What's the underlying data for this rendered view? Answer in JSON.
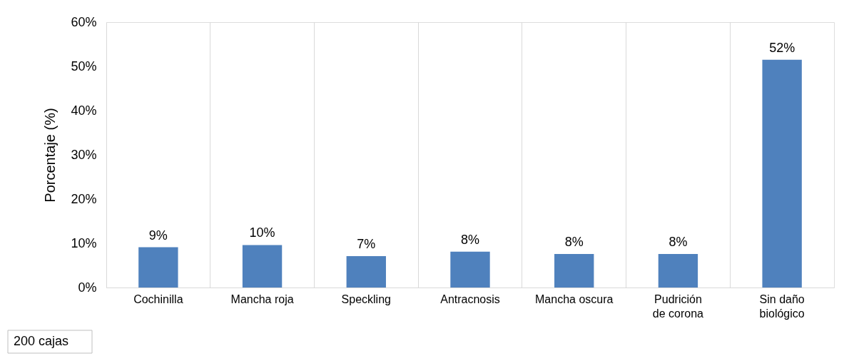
{
  "chart_data": {
    "type": "bar",
    "ylabel": "Porcentaje (%)",
    "categories": [
      "Cochinilla",
      "Mancha roja",
      "Speckling",
      "Antracnosis",
      "Mancha oscura",
      "Pudrición de corona",
      "Sin daño biológico"
    ],
    "values": [
      9.1,
      9.6,
      7.1,
      8.1,
      7.6,
      7.6,
      51.5
    ],
    "value_labels": [
      "9%",
      "10%",
      "7%",
      "8%",
      "8%",
      "8%",
      "52%"
    ],
    "color": "#4f81bd",
    "ylim": [
      0,
      60
    ],
    "yticks": [
      {
        "value": 0,
        "label": "0%"
      },
      {
        "value": 10,
        "label": "10%"
      },
      {
        "value": 20,
        "label": "20%"
      },
      {
        "value": 30,
        "label": "30%"
      },
      {
        "value": 40,
        "label": "40%"
      },
      {
        "value": 50,
        "label": "50%"
      },
      {
        "value": 60,
        "label": "60%"
      }
    ],
    "grid": "x",
    "annotations": [
      "200 cajas"
    ]
  }
}
